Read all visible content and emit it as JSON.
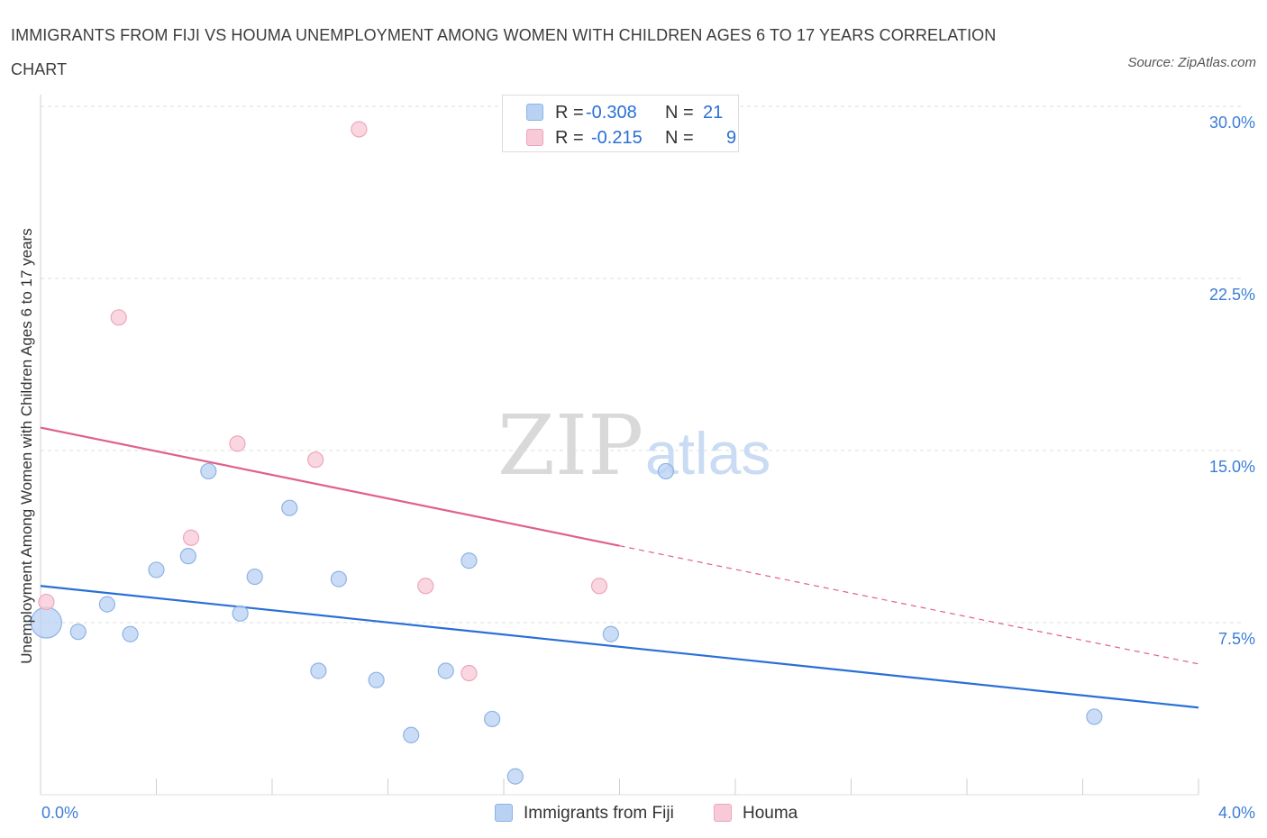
{
  "title": "IMMIGRANTS FROM FIJI VS HOUMA UNEMPLOYMENT AMONG WOMEN WITH CHILDREN AGES 6 TO 17 YEARS CORRELATION CHART",
  "source": "Source: ZipAtlas.com",
  "watermark": {
    "zip": "ZIP",
    "atlas": "atlas"
  },
  "colors": {
    "fiji_fill": "#b9d2f3",
    "fiji_stroke": "#8db3e6",
    "fiji_line": "#2a6fd6",
    "houma_fill": "#f8c9d6",
    "houma_stroke": "#eea5bb",
    "houma_line": "#e0608a",
    "grid": "#dedede",
    "axis_label": "#3b7dd8"
  },
  "legend": {
    "rows": [
      {
        "series": "fiji",
        "r_label": "R =",
        "r_value": "-0.308",
        "n_label": "N =",
        "n_value": "21"
      },
      {
        "series": "houma",
        "r_label": "R =",
        "r_value": "-0.215",
        "n_label": "N =",
        "n_value": "9"
      }
    ]
  },
  "chart_data": {
    "type": "scatter",
    "title": "IMMIGRANTS FROM FIJI VS HOUMA UNEMPLOYMENT AMONG WOMEN WITH CHILDREN AGES 6 TO 17 YEARS CORRELATION CHART",
    "xlabel": "",
    "ylabel": "Unemployment Among Women with Children Ages 6 to 17 years",
    "xlim": [
      0.0,
      4.0
    ],
    "ylim": [
      0.0,
      30.0
    ],
    "x_tick_labels": [
      "0.0%",
      "4.0%"
    ],
    "y_ticks": [
      7.5,
      15.0,
      22.5,
      30.0
    ],
    "y_tick_labels": [
      "7.5%",
      "15.0%",
      "22.5%",
      "30.0%"
    ],
    "grid": true,
    "legend_position": "top-center",
    "series": [
      {
        "name": "Immigrants from Fiji",
        "key": "fiji",
        "R": -0.308,
        "N": 21,
        "points": [
          {
            "x": 0.02,
            "y": 7.5,
            "size": "large"
          },
          {
            "x": 0.13,
            "y": 7.1
          },
          {
            "x": 0.23,
            "y": 8.3
          },
          {
            "x": 0.31,
            "y": 7.0
          },
          {
            "x": 0.4,
            "y": 9.8
          },
          {
            "x": 0.51,
            "y": 10.4
          },
          {
            "x": 0.58,
            "y": 14.1
          },
          {
            "x": 0.69,
            "y": 7.9
          },
          {
            "x": 0.74,
            "y": 9.5
          },
          {
            "x": 0.86,
            "y": 12.5
          },
          {
            "x": 0.96,
            "y": 5.4
          },
          {
            "x": 1.03,
            "y": 9.4
          },
          {
            "x": 1.16,
            "y": 5.0
          },
          {
            "x": 1.28,
            "y": 2.6
          },
          {
            "x": 1.4,
            "y": 5.4
          },
          {
            "x": 1.48,
            "y": 10.2
          },
          {
            "x": 1.56,
            "y": 3.3
          },
          {
            "x": 1.64,
            "y": 0.8
          },
          {
            "x": 1.97,
            "y": 7.0
          },
          {
            "x": 2.16,
            "y": 14.1
          },
          {
            "x": 3.64,
            "y": 3.4
          }
        ],
        "trend": {
          "x0": 0.0,
          "y0": 9.1,
          "x1": 4.0,
          "y1": 3.8,
          "dashed_from": null
        }
      },
      {
        "name": "Houma",
        "key": "houma",
        "R": -0.215,
        "N": 9,
        "points": [
          {
            "x": 0.02,
            "y": 8.4
          },
          {
            "x": 0.27,
            "y": 20.8
          },
          {
            "x": 0.52,
            "y": 11.2
          },
          {
            "x": 0.68,
            "y": 15.3
          },
          {
            "x": 0.95,
            "y": 14.6
          },
          {
            "x": 1.1,
            "y": 29.0
          },
          {
            "x": 1.33,
            "y": 9.1
          },
          {
            "x": 1.48,
            "y": 5.3
          },
          {
            "x": 1.93,
            "y": 9.1
          }
        ],
        "trend": {
          "x0": 0.0,
          "y0": 16.0,
          "x1": 4.0,
          "y1": 5.7,
          "dashed_from": 2.0
        }
      }
    ]
  }
}
